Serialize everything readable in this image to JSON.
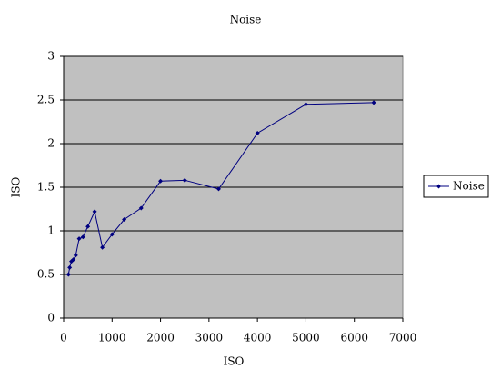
{
  "chart_data": {
    "type": "line",
    "title": "Noise",
    "x_label": "ISO",
    "y_label": "ISO",
    "x": [
      100,
      125,
      160,
      200,
      250,
      320,
      400,
      500,
      640,
      800,
      1000,
      1250,
      1600,
      2000,
      2500,
      3200,
      4000,
      5000,
      6400
    ],
    "series": [
      {
        "name": "Noise",
        "color": "#000080",
        "values": [
          0.5,
          0.58,
          0.65,
          0.67,
          0.72,
          0.91,
          0.93,
          1.05,
          1.22,
          0.81,
          0.96,
          1.13,
          1.26,
          1.57,
          1.58,
          1.48,
          2.12,
          2.45,
          2.47
        ]
      }
    ],
    "xlim": [
      0,
      7000
    ],
    "xticks": [
      0,
      1000,
      2000,
      3000,
      4000,
      5000,
      6000,
      7000
    ],
    "ylim": [
      0,
      3
    ],
    "yticks": [
      0,
      0.5,
      1,
      1.5,
      2,
      2.5,
      3
    ],
    "grid": true,
    "legend": "right"
  }
}
